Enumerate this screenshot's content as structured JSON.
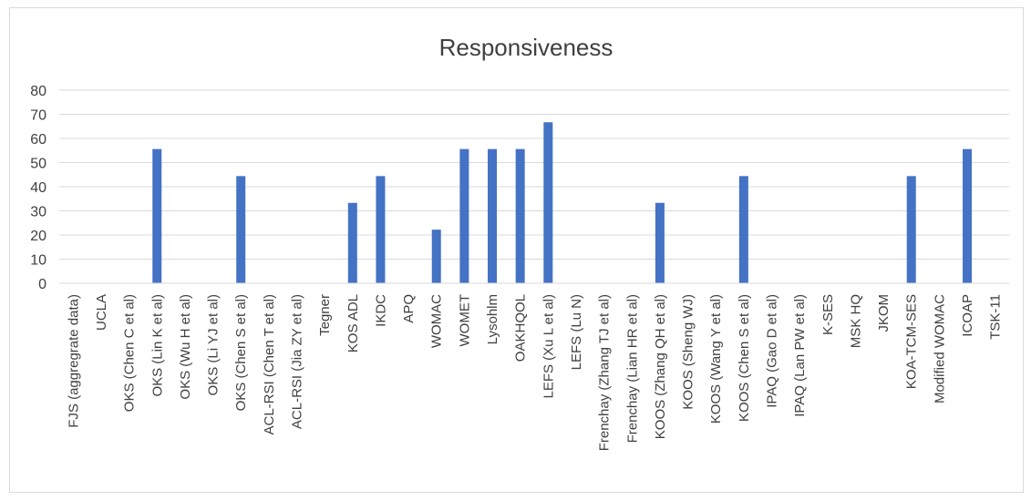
{
  "chart_data": {
    "type": "bar",
    "title": "Responsiveness",
    "xlabel": "",
    "ylabel": "",
    "ylim": [
      0,
      80
    ],
    "yticks": [
      0,
      10,
      20,
      30,
      40,
      50,
      60,
      70,
      80
    ],
    "grid": true,
    "legend": "none",
    "bar_color": "#4472C4",
    "categories": [
      "FJS (aggregrate data)",
      "UCLA",
      "OKS (Chen C et al)",
      "OKS (Lin K et al)",
      "OKS (Wu H et al)",
      "OKS (Li YJ et al)",
      "OKS (Chen S et al)",
      "ACL-RSI (Chen T et al)",
      "ACL-RSI (Jia ZY et al)",
      "Tegner",
      "KOS ADL",
      "IKDC",
      "APQ",
      "WOMAC",
      "WOMET",
      "Lysohlm",
      "OAKHQOL",
      "LEFS (Xu L et al)",
      "LEFS (Lu N)",
      "Frenchay (Zhang TJ et al)",
      "Frenchay (Lian HR et al)",
      "KOOS (Zhang QH et al)",
      "KOOS (Sheng WJ)",
      "KOOS (Wang Y et al)",
      "KOOS (Chen S et al)",
      "IPAQ (Gao D et al)",
      "IPAQ  (Lan PW et al)",
      "K-SES",
      "MSK HQ",
      "JKOM",
      "KOA-TCM-SES",
      "Modified WOMAC",
      "ICOAP",
      "TSK-11"
    ],
    "values": [
      0,
      0,
      0,
      55.6,
      0,
      0,
      44.4,
      0,
      0,
      0,
      33.3,
      44.4,
      0,
      22.2,
      55.6,
      55.6,
      55.6,
      66.7,
      0,
      0,
      0,
      33.3,
      0,
      0,
      44.4,
      0,
      0,
      0,
      0,
      0,
      44.4,
      0,
      55.6,
      0
    ]
  }
}
